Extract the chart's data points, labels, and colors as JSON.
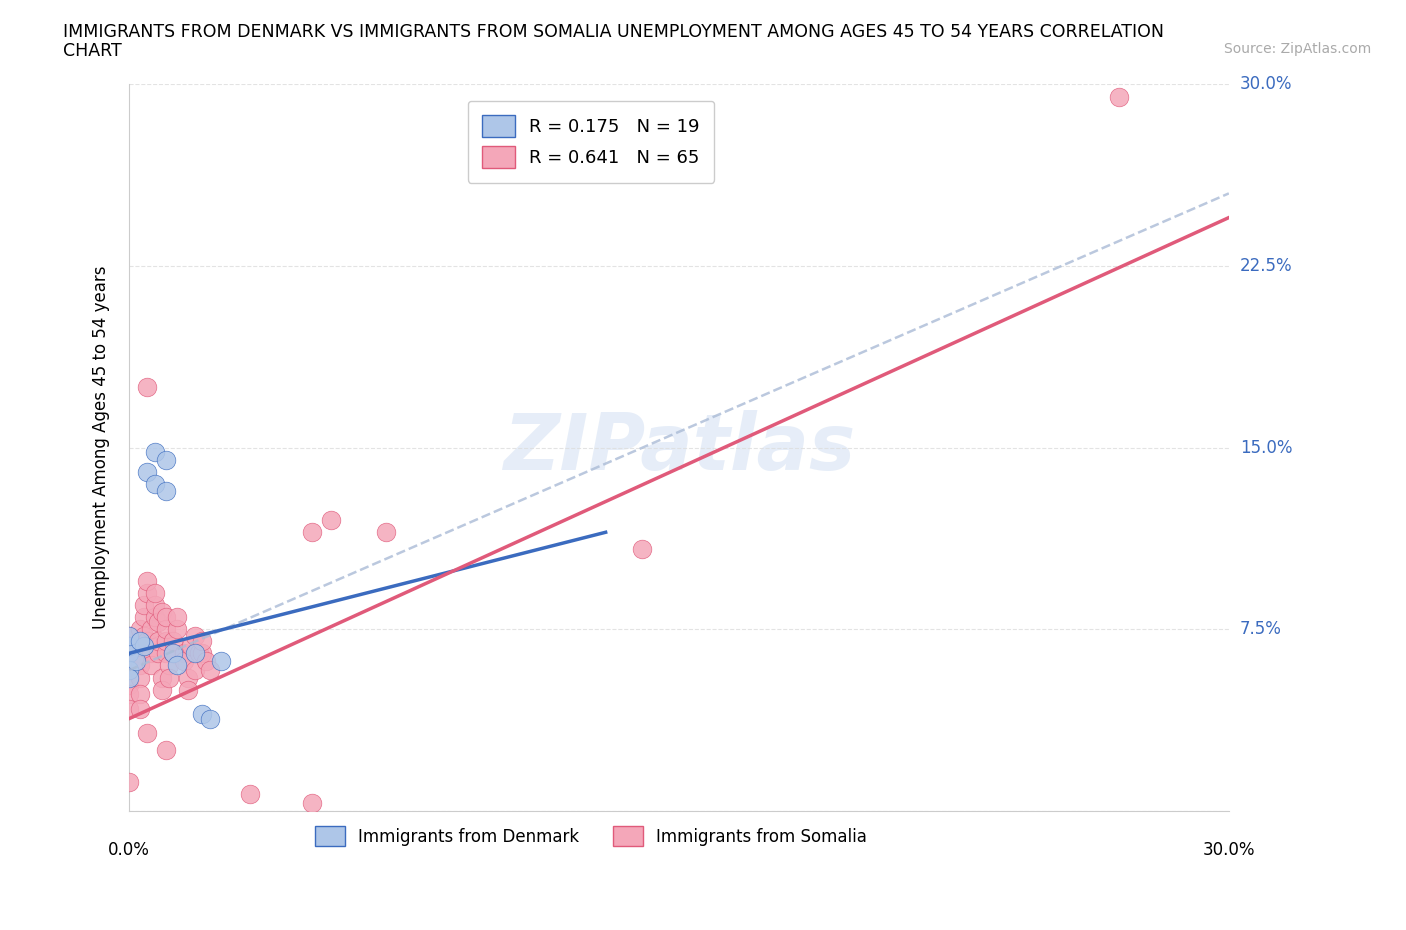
{
  "title_line1": "IMMIGRANTS FROM DENMARK VS IMMIGRANTS FROM SOMALIA UNEMPLOYMENT AMONG AGES 45 TO 54 YEARS CORRELATION",
  "title_line2": "CHART",
  "source": "Source: ZipAtlas.com",
  "ylabel": "Unemployment Among Ages 45 to 54 years",
  "xlim": [
    0,
    0.3
  ],
  "ylim": [
    0,
    0.3
  ],
  "yticks": [
    0.0,
    0.075,
    0.15,
    0.225,
    0.3
  ],
  "ytick_labels": [
    "",
    "7.5%",
    "15.0%",
    "22.5%",
    "30.0%"
  ],
  "denmark_R": 0.175,
  "denmark_N": 19,
  "somalia_R": 0.641,
  "somalia_N": 65,
  "denmark_color": "#aec6e8",
  "somalia_color": "#f4a7b9",
  "denmark_line_color": "#3b6bbf",
  "somalia_line_color": "#e05a7a",
  "dashed_line_color": "#aabbd6",
  "watermark": "ZIPatlas",
  "legend_label_denmark": "Immigrants from Denmark",
  "legend_label_somalia": "Immigrants from Somalia",
  "denmark_line": {
    "x0": 0.0,
    "y0": 0.065,
    "x1": 0.13,
    "y1": 0.115
  },
  "somalia_line": {
    "x0": 0.0,
    "y0": 0.038,
    "x1": 0.3,
    "y1": 0.245
  },
  "dashed_line": {
    "x0": 0.0,
    "y0": 0.058,
    "x1": 0.3,
    "y1": 0.255
  },
  "denmark_points": [
    [
      0.0,
      0.065
    ],
    [
      0.0,
      0.068
    ],
    [
      0.0,
      0.072
    ],
    [
      0.005,
      0.14
    ],
    [
      0.007,
      0.148
    ],
    [
      0.007,
      0.135
    ],
    [
      0.01,
      0.145
    ],
    [
      0.01,
      0.132
    ],
    [
      0.012,
      0.065
    ],
    [
      0.013,
      0.06
    ],
    [
      0.018,
      0.065
    ],
    [
      0.02,
      0.04
    ],
    [
      0.022,
      0.038
    ],
    [
      0.025,
      0.062
    ],
    [
      0.0,
      0.058
    ],
    [
      0.002,
      0.062
    ],
    [
      0.004,
      0.068
    ],
    [
      0.003,
      0.07
    ],
    [
      0.0,
      0.055
    ]
  ],
  "somalia_points": [
    [
      0.0,
      0.062
    ],
    [
      0.0,
      0.058
    ],
    [
      0.001,
      0.065
    ],
    [
      0.0,
      0.052
    ],
    [
      0.0,
      0.048
    ],
    [
      0.0,
      0.042
    ],
    [
      0.0,
      0.072
    ],
    [
      0.0,
      0.068
    ],
    [
      0.001,
      0.06
    ],
    [
      0.003,
      0.065
    ],
    [
      0.003,
      0.06
    ],
    [
      0.003,
      0.055
    ],
    [
      0.003,
      0.048
    ],
    [
      0.003,
      0.042
    ],
    [
      0.003,
      0.075
    ],
    [
      0.004,
      0.072
    ],
    [
      0.004,
      0.08
    ],
    [
      0.004,
      0.085
    ],
    [
      0.005,
      0.09
    ],
    [
      0.005,
      0.095
    ],
    [
      0.005,
      0.07
    ],
    [
      0.006,
      0.065
    ],
    [
      0.006,
      0.06
    ],
    [
      0.006,
      0.075
    ],
    [
      0.007,
      0.08
    ],
    [
      0.007,
      0.085
    ],
    [
      0.007,
      0.09
    ],
    [
      0.008,
      0.065
    ],
    [
      0.008,
      0.07
    ],
    [
      0.008,
      0.078
    ],
    [
      0.009,
      0.082
    ],
    [
      0.009,
      0.055
    ],
    [
      0.009,
      0.05
    ],
    [
      0.01,
      0.065
    ],
    [
      0.01,
      0.07
    ],
    [
      0.01,
      0.075
    ],
    [
      0.01,
      0.08
    ],
    [
      0.011,
      0.06
    ],
    [
      0.011,
      0.055
    ],
    [
      0.012,
      0.065
    ],
    [
      0.012,
      0.07
    ],
    [
      0.013,
      0.075
    ],
    [
      0.013,
      0.08
    ],
    [
      0.015,
      0.065
    ],
    [
      0.015,
      0.062
    ],
    [
      0.016,
      0.055
    ],
    [
      0.016,
      0.05
    ],
    [
      0.017,
      0.068
    ],
    [
      0.018,
      0.072
    ],
    [
      0.018,
      0.058
    ],
    [
      0.019,
      0.065
    ],
    [
      0.02,
      0.065
    ],
    [
      0.02,
      0.07
    ],
    [
      0.021,
      0.062
    ],
    [
      0.022,
      0.058
    ],
    [
      0.005,
      0.175
    ],
    [
      0.05,
      0.115
    ],
    [
      0.055,
      0.12
    ],
    [
      0.07,
      0.115
    ],
    [
      0.14,
      0.108
    ],
    [
      0.27,
      0.295
    ],
    [
      0.0,
      0.012
    ],
    [
      0.033,
      0.007
    ],
    [
      0.05,
      0.003
    ],
    [
      0.005,
      0.032
    ],
    [
      0.01,
      0.025
    ]
  ]
}
